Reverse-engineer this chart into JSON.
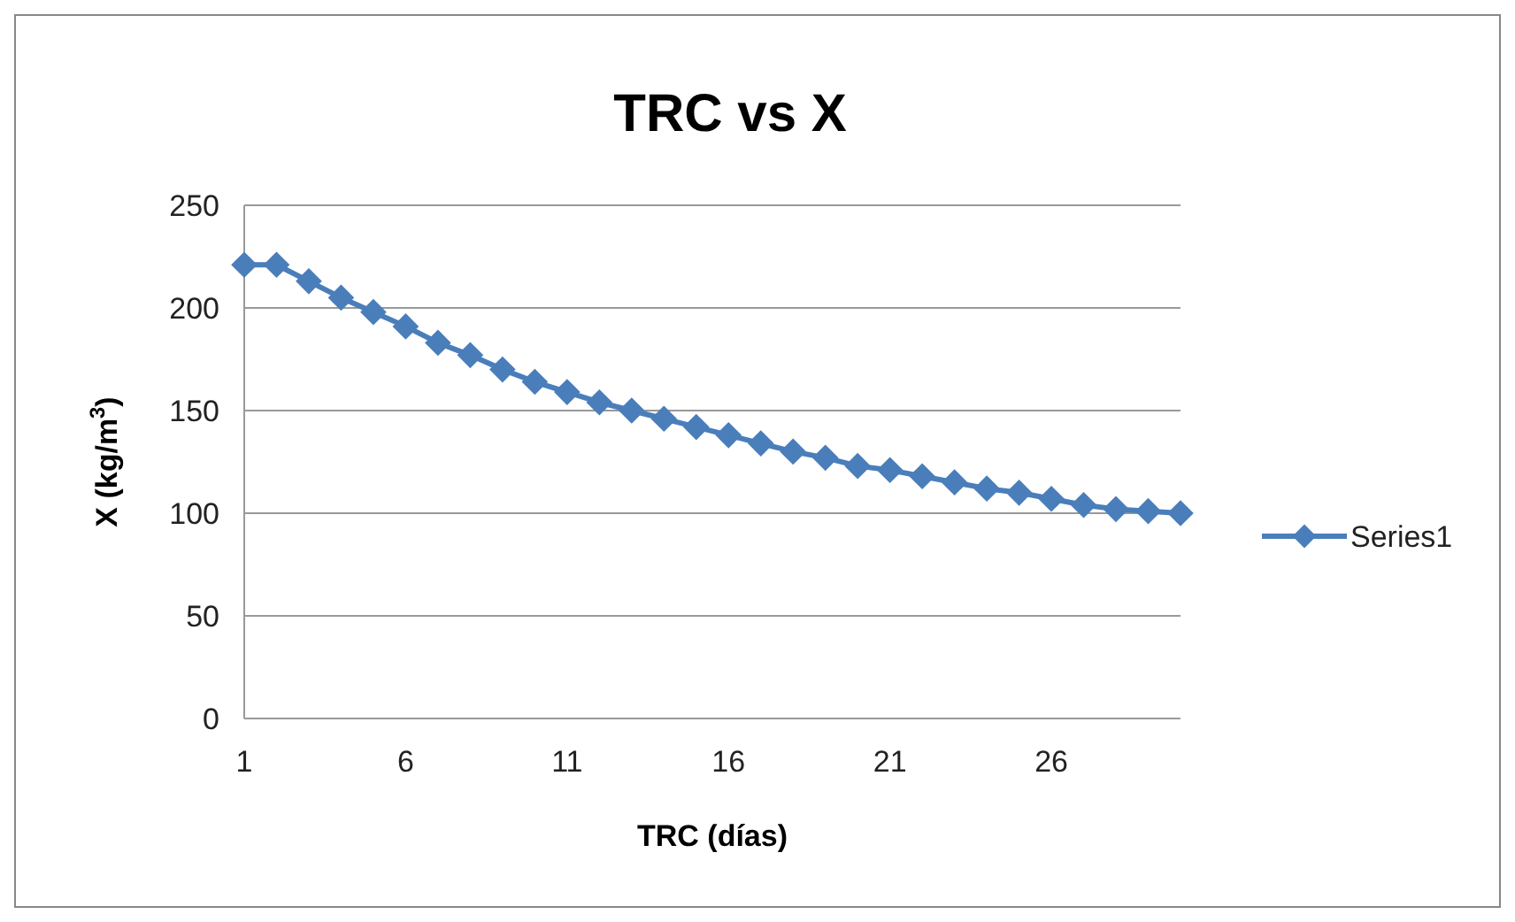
{
  "chart_data": {
    "type": "line",
    "title": "TRC vs X",
    "xlabel": "TRC (días)",
    "ylabel": "X (kg/m$^{3}$)",
    "x": [
      1,
      2,
      3,
      4,
      5,
      6,
      7,
      8,
      9,
      10,
      11,
      12,
      13,
      14,
      15,
      16,
      17,
      18,
      19,
      20,
      21,
      22,
      23,
      24,
      25,
      26,
      27,
      28,
      29,
      30
    ],
    "xlim": [
      1,
      30
    ],
    "xticks": [
      1,
      6,
      11,
      16,
      21,
      26
    ],
    "series": [
      {
        "name": "Series1",
        "color": "#4a7ebb",
        "values": [
          221,
          221,
          213,
          205,
          198,
          191,
          183,
          177,
          170,
          164,
          159,
          154,
          150,
          146,
          142,
          138,
          134,
          130,
          127,
          123,
          121,
          118,
          115,
          112,
          110,
          107,
          104,
          102,
          101,
          100
        ]
      }
    ],
    "ylim": [
      0,
      250
    ],
    "yticks": [
      0,
      50,
      100,
      150,
      200,
      250
    ],
    "grid": "y",
    "legend": "right",
    "marker": "diamond",
    "line_style": "solid"
  }
}
